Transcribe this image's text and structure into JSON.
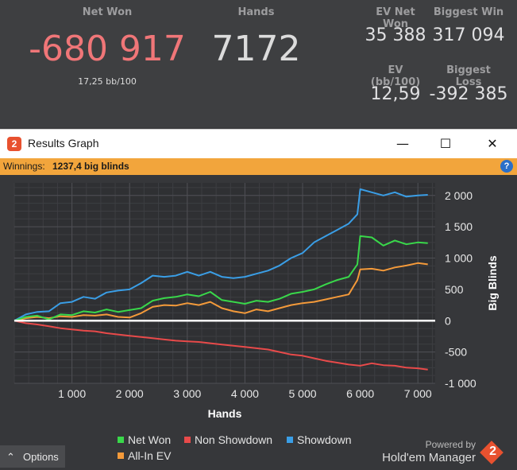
{
  "stats": {
    "net_won_label": "Net Won",
    "net_won_value": "-680 917",
    "net_won_sub": "17,25 bb/100",
    "hands_label": "Hands",
    "hands_value": "7172",
    "ev_net_won_label": "EV Net Won",
    "ev_net_won_value": "35 388",
    "biggest_win_label": "Biggest Win",
    "biggest_win_value": "317 094",
    "ev_bb_label": "EV (bb/100)",
    "ev_bb_value": "12,59",
    "biggest_loss_label": "Biggest Loss",
    "biggest_loss_value": "-392 385"
  },
  "colors": {
    "net_won_value": "#f07678",
    "hands_value": "#dcdcdc"
  },
  "window": {
    "title": "Results Graph",
    "icon_text": "2",
    "minimize": "—",
    "maximize": "☐",
    "close": "✕"
  },
  "infobar": {
    "label": "Winnings:",
    "value": "1237,4 big blinds",
    "help": "?"
  },
  "chart_data": {
    "type": "line",
    "xlabel": "Hands",
    "ylabel": "Big Blinds",
    "xlim": [
      0,
      7300
    ],
    "ylim": [
      -1000,
      2200
    ],
    "x_ticks": [
      1000,
      2000,
      3000,
      4000,
      5000,
      6000,
      7000
    ],
    "x_tick_labels": [
      "1 000",
      "2 000",
      "3 000",
      "4 000",
      "5 000",
      "6 000",
      "7 000"
    ],
    "y_ticks": [
      2000,
      1500,
      1000,
      500,
      0,
      -500,
      -1000
    ],
    "y_tick_labels": [
      "2 000",
      "1 500",
      "1 000",
      "500",
      "0",
      "-500",
      "-1 000"
    ],
    "grid": true,
    "legend_position": "bottom",
    "series": [
      {
        "name": "Net Won",
        "color": "#39d84a",
        "x": [
          0,
          200,
          400,
          600,
          800,
          1000,
          1200,
          1400,
          1600,
          1800,
          2000,
          2200,
          2400,
          2600,
          2800,
          3000,
          3200,
          3400,
          3600,
          3800,
          4000,
          4200,
          4400,
          4600,
          4800,
          5000,
          5200,
          5400,
          5600,
          5800,
          5950,
          6000,
          6200,
          6400,
          6600,
          6800,
          7000,
          7172
        ],
        "y": [
          0,
          60,
          80,
          20,
          100,
          90,
          150,
          130,
          180,
          140,
          170,
          200,
          320,
          360,
          380,
          420,
          390,
          460,
          330,
          300,
          270,
          320,
          300,
          350,
          430,
          460,
          500,
          580,
          650,
          700,
          900,
          1350,
          1330,
          1200,
          1280,
          1220,
          1250,
          1237
        ]
      },
      {
        "name": "Non Showdown",
        "color": "#e84a4a",
        "x": [
          0,
          200,
          400,
          600,
          800,
          1000,
          1200,
          1400,
          1600,
          1800,
          2000,
          2200,
          2400,
          2600,
          2800,
          3000,
          3200,
          3400,
          3600,
          3800,
          4000,
          4200,
          4400,
          4600,
          4800,
          5000,
          5200,
          5400,
          5600,
          5800,
          6000,
          6200,
          6400,
          6600,
          6800,
          7000,
          7172
        ],
        "y": [
          0,
          -40,
          -60,
          -90,
          -120,
          -140,
          -160,
          -170,
          -200,
          -220,
          -240,
          -260,
          -280,
          -300,
          -320,
          -330,
          -340,
          -360,
          -380,
          -400,
          -420,
          -440,
          -460,
          -500,
          -540,
          -560,
          -600,
          -640,
          -670,
          -700,
          -720,
          -680,
          -710,
          -720,
          -750,
          -760,
          -780
        ]
      },
      {
        "name": "Showdown",
        "color": "#3a9ee6",
        "x": [
          0,
          200,
          400,
          600,
          800,
          1000,
          1200,
          1400,
          1600,
          1800,
          2000,
          2200,
          2400,
          2600,
          2800,
          3000,
          3200,
          3400,
          3600,
          3800,
          4000,
          4200,
          4400,
          4600,
          4800,
          5000,
          5200,
          5400,
          5600,
          5800,
          5950,
          6000,
          6200,
          6400,
          6600,
          6800,
          7000,
          7172
        ],
        "y": [
          0,
          100,
          140,
          150,
          280,
          300,
          380,
          350,
          450,
          480,
          500,
          600,
          720,
          700,
          720,
          780,
          720,
          780,
          700,
          680,
          700,
          750,
          800,
          880,
          1000,
          1080,
          1250,
          1350,
          1450,
          1550,
          1700,
          2100,
          2050,
          2000,
          2050,
          1980,
          2000,
          2010
        ]
      },
      {
        "name": "All-In EV",
        "color": "#f49a3a",
        "x": [
          0,
          200,
          400,
          600,
          800,
          1000,
          1200,
          1400,
          1600,
          1800,
          2000,
          2200,
          2400,
          2600,
          2800,
          3000,
          3200,
          3400,
          3600,
          3800,
          4000,
          4200,
          4400,
          4600,
          4800,
          5000,
          5200,
          5400,
          5600,
          5800,
          5950,
          6000,
          6200,
          6400,
          6600,
          6800,
          7000,
          7172
        ],
        "y": [
          0,
          40,
          60,
          40,
          70,
          60,
          90,
          80,
          100,
          60,
          50,
          120,
          220,
          250,
          240,
          280,
          250,
          300,
          200,
          150,
          120,
          180,
          150,
          200,
          250,
          280,
          300,
          340,
          380,
          420,
          650,
          820,
          830,
          800,
          850,
          880,
          920,
          900
        ]
      }
    ]
  },
  "options": {
    "label": "Options",
    "chevron": "⌃"
  },
  "brand": {
    "powered": "Powered by",
    "name": "Hold'em Manager",
    "logo": "2"
  }
}
